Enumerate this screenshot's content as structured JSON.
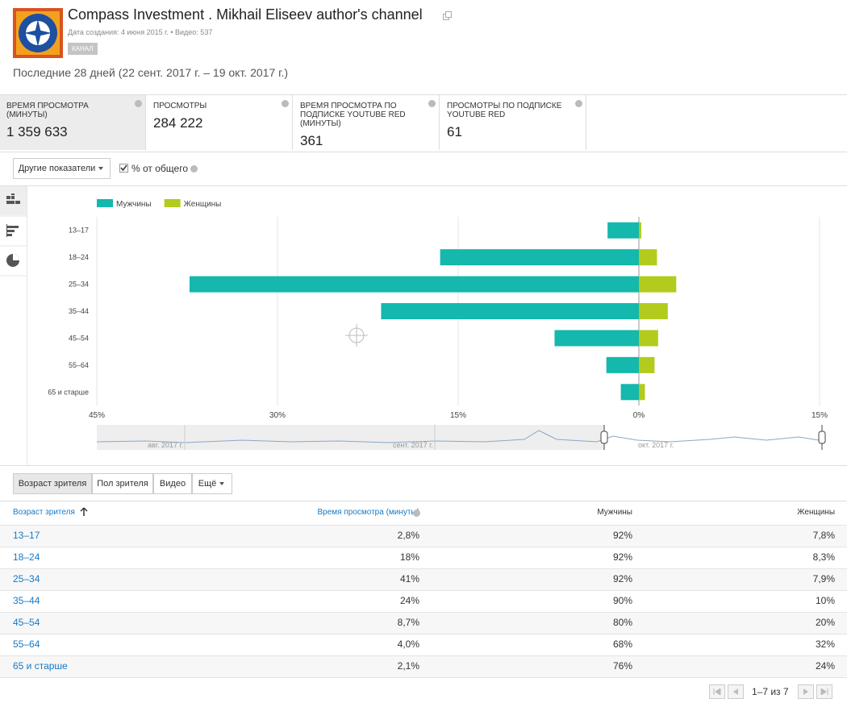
{
  "header": {
    "title": "Compass Investment . Mikhail Eliseev author's channel",
    "created": "Дата создания: 4 июня 2015 г.",
    "separator": "•",
    "videos": "Видео: 537",
    "badge": "КАНАЛ",
    "period": "Последние 28 дней (22 сент. 2017 г. – 19 окт. 2017 г.)"
  },
  "metrics": [
    {
      "label": "ВРЕМЯ ПРОСМОТРА (МИНУТЫ)",
      "value": "1 359 633"
    },
    {
      "label": "ПРОСМОТРЫ",
      "value": "284 222"
    },
    {
      "label": "ВРЕМЯ ПРОСМОТРА ПО ПОДПИСКЕ YOUTUBE RED (МИНУТЫ)",
      "value": "361"
    },
    {
      "label": "ПРОСМОТРЫ ПО ПОДПИСКЕ YOUTUBE RED",
      "value": "61"
    }
  ],
  "controls": {
    "more_metrics": "Другие показатели",
    "percent_toggle": "% от общего"
  },
  "chart_data": {
    "type": "bar",
    "orientation": "horizontal",
    "categories": [
      "13–17",
      "18–24",
      "25–34",
      "35–44",
      "45–54",
      "55–64",
      "65 и старше"
    ],
    "series": [
      {
        "name": "Мужчины",
        "color": "#14b8ac",
        "values": [
          -2.6,
          -16.5,
          -37.3,
          -21.4,
          -7.0,
          -2.7,
          -1.5
        ]
      },
      {
        "name": "Женщины",
        "color": "#b3cb1c",
        "values": [
          0.2,
          1.5,
          3.1,
          2.4,
          1.6,
          1.3,
          0.5
        ]
      }
    ],
    "xlim": [
      -45,
      15
    ],
    "xticks": [
      {
        "value": -45,
        "label": "45%"
      },
      {
        "value": -30,
        "label": "30%"
      },
      {
        "value": -15,
        "label": "15%"
      },
      {
        "value": 0,
        "label": "0%"
      },
      {
        "value": 15,
        "label": "15%"
      }
    ],
    "grid": true,
    "legend": "top-left"
  },
  "timeline": {
    "labels": [
      "авг. 2017 г.",
      "сент. 2017 г.",
      "окт. 2017 г."
    ]
  },
  "tabs": [
    "Возраст зрителя",
    "Пол зрителя",
    "Видео",
    "Ещё"
  ],
  "table": {
    "headers": [
      "Возраст зрителя",
      "Время просмотра (минуты)",
      "Мужчины",
      "Женщины"
    ],
    "rows": [
      [
        "13–17",
        "2,8%",
        "92%",
        "7,8%"
      ],
      [
        "18–24",
        "18%",
        "92%",
        "8,3%"
      ],
      [
        "25–34",
        "41%",
        "92%",
        "7,9%"
      ],
      [
        "35–44",
        "24%",
        "90%",
        "10%"
      ],
      [
        "45–54",
        "8,7%",
        "80%",
        "20%"
      ],
      [
        "55–64",
        "4,0%",
        "68%",
        "32%"
      ],
      [
        "65 и старше",
        "2,1%",
        "76%",
        "24%"
      ]
    ]
  },
  "pagination": "1–7 из 7"
}
